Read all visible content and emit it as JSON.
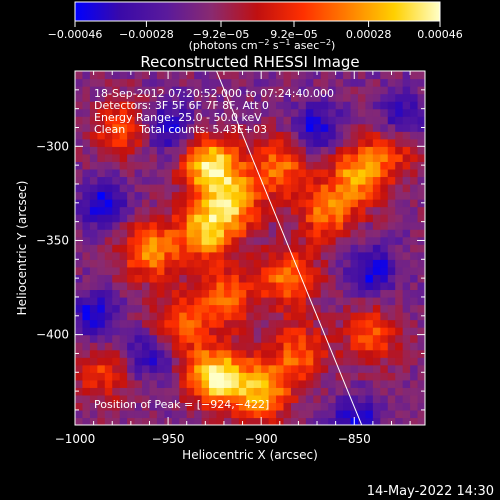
{
  "chart_data": {
    "type": "heatmap",
    "title": "Reconstructed RHESSI Image",
    "xlabel": "Heliocentric X (arcsec)",
    "ylabel": "Heliocentric Y (arcsec)",
    "xlim": [
      -1000,
      -812
    ],
    "ylim": [
      -448,
      -260
    ],
    "x_ticks": [
      -1000,
      -950,
      -900,
      -850
    ],
    "x_tick_labels": [
      "−1000",
      "−950",
      "−900",
      "−850"
    ],
    "y_ticks": [
      -300,
      -350,
      -400
    ],
    "y_tick_labels": [
      "−300",
      "−350",
      "−400"
    ],
    "colorbar": {
      "range": [
        -0.00046,
        0.00046
      ],
      "ticks": [
        -0.00046,
        -0.00028,
        -9.2e-05,
        9.2e-05,
        0.00028,
        0.00046
      ],
      "tick_labels": [
        "−0.00046",
        "−0.00028",
        "−9.2e−05",
        "9.2e−05",
        "0.00028",
        "0.00046"
      ],
      "unit_parts": [
        "(photons cm",
        "−2",
        " s",
        "−1",
        " asec",
        "−2",
        ")"
      ],
      "colors": [
        "#0000ff",
        "#3a0aa8",
        "#5a1a9c",
        "#8a2a70",
        "#c01010",
        "#ff3000",
        "#ff8000",
        "#ffd000",
        "#ffffc8"
      ]
    },
    "annotations": [
      "18-Sep-2012 07:20:52.000 to 07:24:40.000",
      "Detectors: 3F 5F 6F 7F 8F, Att 0",
      "Energy Range: 25.0 - 50.0 keV",
      "Clean    Total counts: 5.43E+03"
    ],
    "peak_label": "Position of Peak = [−924,−422]",
    "peak": [
      -924,
      -422
    ],
    "limb": {
      "points": [
        [
          -924,
          -260
        ],
        [
          -846,
          -448
        ]
      ],
      "color": "#ffffff"
    },
    "bright_sources": [
      {
        "x": -927,
        "y": -310,
        "level": 0.95
      },
      {
        "x": -930,
        "y": -345,
        "level": 0.8
      },
      {
        "x": -915,
        "y": -330,
        "level": 0.7
      },
      {
        "x": -920,
        "y": -380,
        "level": 0.6
      },
      {
        "x": -924,
        "y": -422,
        "level": 1.0
      },
      {
        "x": -900,
        "y": -430,
        "level": 0.75
      },
      {
        "x": -885,
        "y": -370,
        "level": 0.65
      },
      {
        "x": -890,
        "y": -310,
        "level": 0.6
      },
      {
        "x": -960,
        "y": -355,
        "level": 0.7
      },
      {
        "x": -945,
        "y": -395,
        "level": 0.55
      },
      {
        "x": -865,
        "y": -335,
        "level": 0.6
      },
      {
        "x": -848,
        "y": -315,
        "level": 0.7
      },
      {
        "x": -830,
        "y": -300,
        "level": 0.45
      },
      {
        "x": -880,
        "y": -410,
        "level": 0.55
      },
      {
        "x": -975,
        "y": -290,
        "level": 0.5
      },
      {
        "x": -840,
        "y": -400,
        "level": 0.5
      },
      {
        "x": -985,
        "y": -420,
        "level": 0.45
      }
    ],
    "dark_regions": [
      {
        "x": -950,
        "y": -290
      },
      {
        "x": -985,
        "y": -330
      },
      {
        "x": -960,
        "y": -410
      },
      {
        "x": -870,
        "y": -290
      },
      {
        "x": -840,
        "y": -365
      },
      {
        "x": -825,
        "y": -285
      },
      {
        "x": -850,
        "y": -445
      },
      {
        "x": -990,
        "y": -390
      }
    ]
  },
  "footer": {
    "date": "14-May-2022 14:30"
  }
}
